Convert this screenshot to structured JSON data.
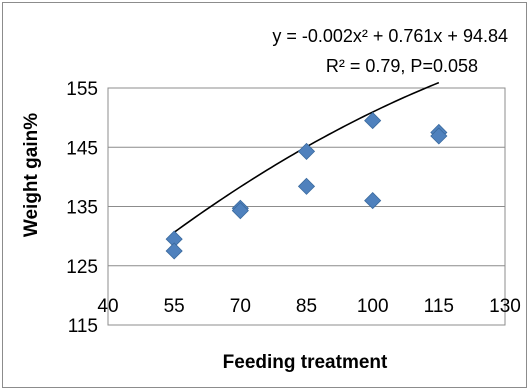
{
  "chart_data": {
    "type": "scatter",
    "xlabel": "Feeding treatment",
    "ylabel": "Weight gain%",
    "xlim": [
      40,
      130
    ],
    "ylim": [
      115,
      155
    ],
    "x_ticks": [
      "40",
      "55",
      "70",
      "85",
      "100",
      "115",
      "130"
    ],
    "y_ticks": [
      "115",
      "125",
      "135",
      "145",
      "155"
    ],
    "grid": "horizontal",
    "legend": "none",
    "marker_color": "#4f81bd",
    "trendline_color": "#000000",
    "points": [
      {
        "x": 55,
        "y": 129.5
      },
      {
        "x": 55,
        "y": 127.5
      },
      {
        "x": 70,
        "y": 134.7
      },
      {
        "x": 70,
        "y": 134.3
      },
      {
        "x": 85,
        "y": 144.3
      },
      {
        "x": 85,
        "y": 138.4
      },
      {
        "x": 100,
        "y": 149.5
      },
      {
        "x": 100,
        "y": 136.0
      },
      {
        "x": 115,
        "y": 147.5
      },
      {
        "x": 115,
        "y": 146.9
      }
    ],
    "trendline": {
      "type": "polynomial",
      "coefficients": [
        -0.002,
        0.761,
        94.84
      ],
      "x_range": [
        55,
        115
      ],
      "equation": "y = -0.002x² + 0.761x + 94.84",
      "stats": "R² = 0.79, P=0.058"
    }
  }
}
